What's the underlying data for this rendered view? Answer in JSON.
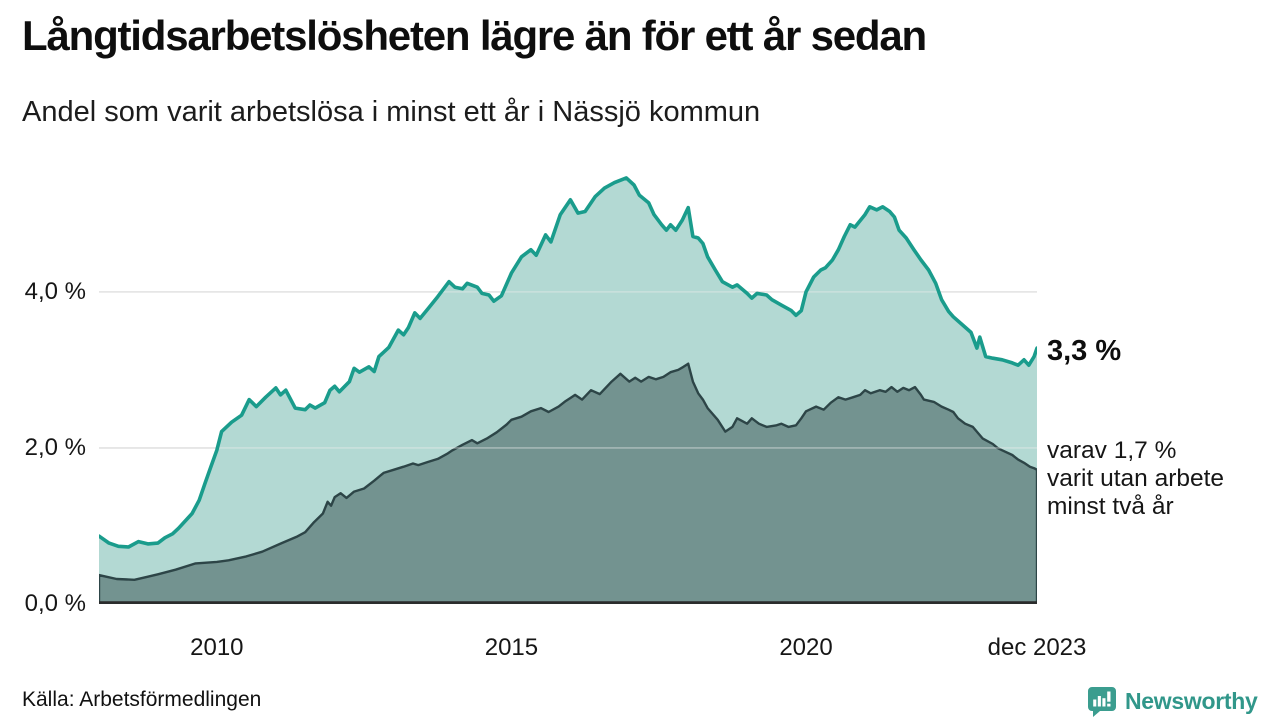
{
  "header": {
    "title": "Långtidsarbetslösheten lägre än för ett år sedan",
    "subtitle": "Andel som varit arbetslösa i minst ett år i Nässjö kommun"
  },
  "annotations": {
    "latest_total": "3,3 %",
    "two_year_note_lines": [
      "varav 1,7 %",
      "varit utan arbete",
      "minst två år"
    ]
  },
  "footer": {
    "source": "Källa: Arbetsförmedlingen",
    "logo_text": "Newsworthy"
  },
  "colors": {
    "line_one_year": "#1a9c8c",
    "fill_one_year": "#b3d9d3",
    "line_two_year": "#2d4547",
    "fill_two_year": "#739390",
    "gridline": "#dedede",
    "gridline_overlay": "rgba(235,235,235,0.42)",
    "axis_line": "#2b2b2b",
    "logo_teal": "#3b9d8f",
    "logo_text_teal": "#31978a",
    "text_dark": "#0e0e0e"
  },
  "chart_data": {
    "type": "area",
    "x_range": [
      2008,
      2023.92
    ],
    "y_range": [
      0,
      5.69
    ],
    "grid": "horizontal-only",
    "legend": "none (direct labels at right)",
    "y_axis": {
      "ticks": [
        {
          "value": 4.0,
          "label": "4,0 %"
        },
        {
          "value": 2.0,
          "label": "2,0 %"
        },
        {
          "value": 0.0,
          "label": "0,0 %"
        }
      ]
    },
    "x_axis": {
      "ticks": [
        {
          "year": 2010,
          "label": "2010"
        },
        {
          "year": 2015,
          "label": "2015"
        },
        {
          "year": 2020,
          "label": "2020"
        },
        {
          "year": 2023.92,
          "label": "dec 2023"
        }
      ]
    },
    "series": [
      {
        "name": "Arbetslösa minst ett år (andel, %)",
        "key": "one_year",
        "last_value_label": "3,3 %",
        "points": [
          [
            2008.0,
            0.87
          ],
          [
            2008.17,
            0.78
          ],
          [
            2008.33,
            0.74
          ],
          [
            2008.5,
            0.73
          ],
          [
            2008.67,
            0.8
          ],
          [
            2008.83,
            0.77
          ],
          [
            2009.0,
            0.78
          ],
          [
            2009.12,
            0.85
          ],
          [
            2009.25,
            0.9
          ],
          [
            2009.35,
            0.97
          ],
          [
            2009.58,
            1.16
          ],
          [
            2009.7,
            1.33
          ],
          [
            2009.8,
            1.55
          ],
          [
            2009.9,
            1.76
          ],
          [
            2010.0,
            1.97
          ],
          [
            2010.08,
            2.21
          ],
          [
            2010.25,
            2.33
          ],
          [
            2010.42,
            2.42
          ],
          [
            2010.55,
            2.62
          ],
          [
            2010.67,
            2.53
          ],
          [
            2010.83,
            2.65
          ],
          [
            2011.0,
            2.77
          ],
          [
            2011.08,
            2.68
          ],
          [
            2011.17,
            2.74
          ],
          [
            2011.33,
            2.51
          ],
          [
            2011.5,
            2.49
          ],
          [
            2011.58,
            2.55
          ],
          [
            2011.67,
            2.51
          ],
          [
            2011.83,
            2.58
          ],
          [
            2011.92,
            2.74
          ],
          [
            2012.0,
            2.79
          ],
          [
            2012.08,
            2.72
          ],
          [
            2012.25,
            2.85
          ],
          [
            2012.33,
            3.02
          ],
          [
            2012.42,
            2.97
          ],
          [
            2012.58,
            3.04
          ],
          [
            2012.67,
            2.98
          ],
          [
            2012.75,
            3.17
          ],
          [
            2012.92,
            3.29
          ],
          [
            2013.08,
            3.51
          ],
          [
            2013.17,
            3.45
          ],
          [
            2013.25,
            3.54
          ],
          [
            2013.36,
            3.73
          ],
          [
            2013.45,
            3.66
          ],
          [
            2013.58,
            3.78
          ],
          [
            2013.75,
            3.94
          ],
          [
            2013.94,
            4.13
          ],
          [
            2014.04,
            4.06
          ],
          [
            2014.17,
            4.04
          ],
          [
            2014.25,
            4.11
          ],
          [
            2014.42,
            4.06
          ],
          [
            2014.5,
            3.98
          ],
          [
            2014.62,
            3.96
          ],
          [
            2014.7,
            3.88
          ],
          [
            2014.83,
            3.95
          ],
          [
            2015.0,
            4.24
          ],
          [
            2015.17,
            4.45
          ],
          [
            2015.33,
            4.54
          ],
          [
            2015.42,
            4.47
          ],
          [
            2015.58,
            4.73
          ],
          [
            2015.67,
            4.64
          ],
          [
            2015.83,
            4.99
          ],
          [
            2016.0,
            5.18
          ],
          [
            2016.13,
            5.01
          ],
          [
            2016.25,
            5.03
          ],
          [
            2016.42,
            5.22
          ],
          [
            2016.58,
            5.33
          ],
          [
            2016.75,
            5.4
          ],
          [
            2016.95,
            5.46
          ],
          [
            2017.08,
            5.37
          ],
          [
            2017.17,
            5.24
          ],
          [
            2017.33,
            5.14
          ],
          [
            2017.42,
            4.99
          ],
          [
            2017.55,
            4.86
          ],
          [
            2017.63,
            4.79
          ],
          [
            2017.7,
            4.86
          ],
          [
            2017.79,
            4.79
          ],
          [
            2017.9,
            4.92
          ],
          [
            2018.0,
            5.08
          ],
          [
            2018.08,
            4.71
          ],
          [
            2018.17,
            4.69
          ],
          [
            2018.25,
            4.62
          ],
          [
            2018.33,
            4.45
          ],
          [
            2018.46,
            4.28
          ],
          [
            2018.58,
            4.13
          ],
          [
            2018.75,
            4.06
          ],
          [
            2018.83,
            4.09
          ],
          [
            2019.0,
            3.98
          ],
          [
            2019.08,
            3.92
          ],
          [
            2019.17,
            3.98
          ],
          [
            2019.33,
            3.96
          ],
          [
            2019.42,
            3.9
          ],
          [
            2019.58,
            3.83
          ],
          [
            2019.75,
            3.76
          ],
          [
            2019.83,
            3.7
          ],
          [
            2019.92,
            3.76
          ],
          [
            2020.0,
            4.0
          ],
          [
            2020.13,
            4.19
          ],
          [
            2020.25,
            4.28
          ],
          [
            2020.33,
            4.31
          ],
          [
            2020.45,
            4.41
          ],
          [
            2020.55,
            4.54
          ],
          [
            2020.65,
            4.71
          ],
          [
            2020.75,
            4.86
          ],
          [
            2020.83,
            4.83
          ],
          [
            2021.0,
            4.99
          ],
          [
            2021.08,
            5.09
          ],
          [
            2021.2,
            5.05
          ],
          [
            2021.3,
            5.09
          ],
          [
            2021.42,
            5.03
          ],
          [
            2021.5,
            4.96
          ],
          [
            2021.58,
            4.79
          ],
          [
            2021.7,
            4.69
          ],
          [
            2021.83,
            4.54
          ],
          [
            2021.95,
            4.41
          ],
          [
            2022.08,
            4.28
          ],
          [
            2022.2,
            4.11
          ],
          [
            2022.3,
            3.9
          ],
          [
            2022.42,
            3.75
          ],
          [
            2022.5,
            3.68
          ],
          [
            2022.65,
            3.58
          ],
          [
            2022.8,
            3.48
          ],
          [
            2022.9,
            3.28
          ],
          [
            2022.95,
            3.42
          ],
          [
            2023.05,
            3.17
          ],
          [
            2023.17,
            3.15
          ],
          [
            2023.33,
            3.13
          ],
          [
            2023.5,
            3.09
          ],
          [
            2023.6,
            3.06
          ],
          [
            2023.7,
            3.13
          ],
          [
            2023.78,
            3.06
          ],
          [
            2023.87,
            3.17
          ],
          [
            2023.92,
            3.28
          ]
        ]
      },
      {
        "name": "Varav arbetslösa minst två år (andel, %)",
        "key": "two_year",
        "last_value_label": "1,7 %",
        "points": [
          [
            2008.0,
            0.37
          ],
          [
            2008.3,
            0.32
          ],
          [
            2008.6,
            0.31
          ],
          [
            2008.83,
            0.35
          ],
          [
            2009.0,
            0.38
          ],
          [
            2009.3,
            0.44
          ],
          [
            2009.64,
            0.52
          ],
          [
            2010.0,
            0.54
          ],
          [
            2010.2,
            0.56
          ],
          [
            2010.5,
            0.61
          ],
          [
            2010.77,
            0.67
          ],
          [
            2011.1,
            0.78
          ],
          [
            2011.35,
            0.86
          ],
          [
            2011.5,
            0.92
          ],
          [
            2011.65,
            1.05
          ],
          [
            2011.8,
            1.16
          ],
          [
            2011.88,
            1.31
          ],
          [
            2011.94,
            1.26
          ],
          [
            2012.0,
            1.37
          ],
          [
            2012.1,
            1.42
          ],
          [
            2012.2,
            1.36
          ],
          [
            2012.33,
            1.44
          ],
          [
            2012.5,
            1.48
          ],
          [
            2012.67,
            1.58
          ],
          [
            2012.83,
            1.68
          ],
          [
            2013.0,
            1.72
          ],
          [
            2013.17,
            1.76
          ],
          [
            2013.33,
            1.8
          ],
          [
            2013.42,
            1.78
          ],
          [
            2013.58,
            1.82
          ],
          [
            2013.75,
            1.86
          ],
          [
            2013.92,
            1.93
          ],
          [
            2014.0,
            1.97
          ],
          [
            2014.17,
            2.04
          ],
          [
            2014.33,
            2.1
          ],
          [
            2014.42,
            2.06
          ],
          [
            2014.58,
            2.12
          ],
          [
            2014.75,
            2.2
          ],
          [
            2014.92,
            2.3
          ],
          [
            2015.0,
            2.36
          ],
          [
            2015.17,
            2.4
          ],
          [
            2015.33,
            2.47
          ],
          [
            2015.5,
            2.51
          ],
          [
            2015.63,
            2.46
          ],
          [
            2015.8,
            2.53
          ],
          [
            2015.92,
            2.6
          ],
          [
            2016.0,
            2.64
          ],
          [
            2016.08,
            2.68
          ],
          [
            2016.2,
            2.62
          ],
          [
            2016.35,
            2.74
          ],
          [
            2016.5,
            2.69
          ],
          [
            2016.7,
            2.85
          ],
          [
            2016.85,
            2.95
          ],
          [
            2017.0,
            2.85
          ],
          [
            2017.1,
            2.9
          ],
          [
            2017.2,
            2.85
          ],
          [
            2017.33,
            2.91
          ],
          [
            2017.45,
            2.88
          ],
          [
            2017.58,
            2.91
          ],
          [
            2017.7,
            2.97
          ],
          [
            2017.83,
            3.0
          ],
          [
            2017.92,
            3.04
          ],
          [
            2018.0,
            3.08
          ],
          [
            2018.08,
            2.85
          ],
          [
            2018.17,
            2.7
          ],
          [
            2018.25,
            2.62
          ],
          [
            2018.33,
            2.51
          ],
          [
            2018.5,
            2.36
          ],
          [
            2018.63,
            2.21
          ],
          [
            2018.75,
            2.27
          ],
          [
            2018.83,
            2.38
          ],
          [
            2019.0,
            2.31
          ],
          [
            2019.08,
            2.38
          ],
          [
            2019.2,
            2.31
          ],
          [
            2019.33,
            2.27
          ],
          [
            2019.5,
            2.29
          ],
          [
            2019.58,
            2.31
          ],
          [
            2019.7,
            2.27
          ],
          [
            2019.83,
            2.29
          ],
          [
            2019.92,
            2.38
          ],
          [
            2020.0,
            2.47
          ],
          [
            2020.17,
            2.53
          ],
          [
            2020.3,
            2.49
          ],
          [
            2020.42,
            2.58
          ],
          [
            2020.55,
            2.65
          ],
          [
            2020.67,
            2.62
          ],
          [
            2020.8,
            2.65
          ],
          [
            2020.92,
            2.68
          ],
          [
            2021.0,
            2.74
          ],
          [
            2021.1,
            2.7
          ],
          [
            2021.25,
            2.74
          ],
          [
            2021.35,
            2.72
          ],
          [
            2021.45,
            2.78
          ],
          [
            2021.55,
            2.72
          ],
          [
            2021.65,
            2.77
          ],
          [
            2021.75,
            2.74
          ],
          [
            2021.85,
            2.78
          ],
          [
            2021.95,
            2.68
          ],
          [
            2022.0,
            2.62
          ],
          [
            2022.17,
            2.59
          ],
          [
            2022.3,
            2.53
          ],
          [
            2022.42,
            2.49
          ],
          [
            2022.5,
            2.46
          ],
          [
            2022.58,
            2.38
          ],
          [
            2022.7,
            2.31
          ],
          [
            2022.83,
            2.27
          ],
          [
            2022.92,
            2.19
          ],
          [
            2023.0,
            2.12
          ],
          [
            2023.17,
            2.05
          ],
          [
            2023.25,
            2.0
          ],
          [
            2023.33,
            1.97
          ],
          [
            2023.5,
            1.91
          ],
          [
            2023.6,
            1.85
          ],
          [
            2023.7,
            1.81
          ],
          [
            2023.8,
            1.76
          ],
          [
            2023.87,
            1.74
          ],
          [
            2023.92,
            1.72
          ]
        ]
      }
    ]
  }
}
